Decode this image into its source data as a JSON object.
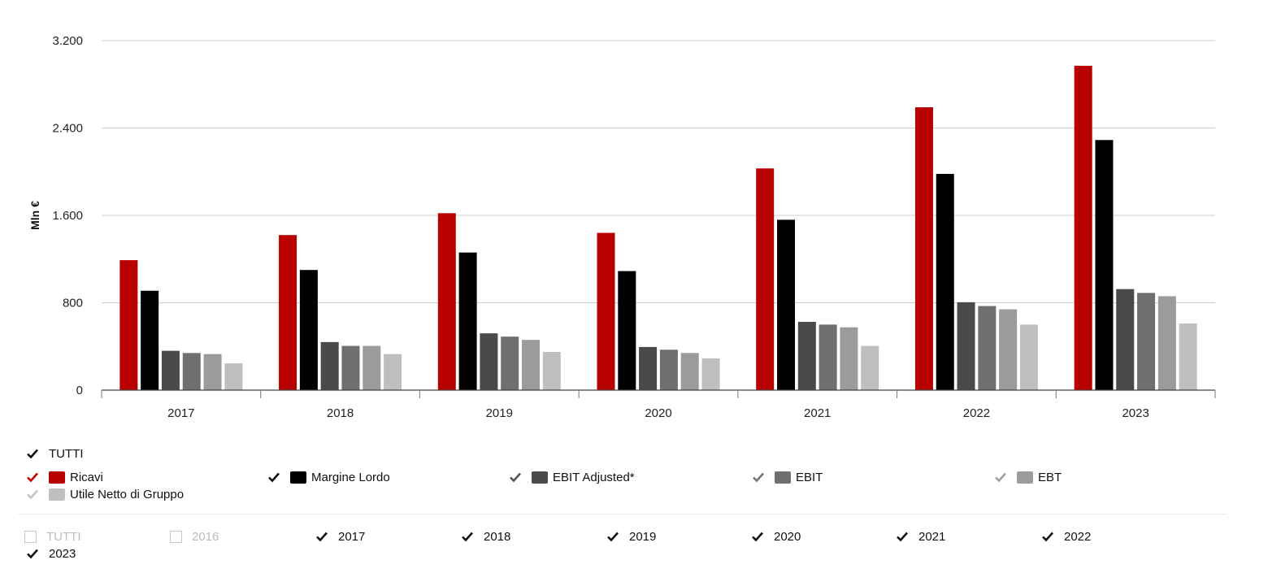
{
  "chart_data": {
    "type": "bar",
    "categories": [
      "2017",
      "2018",
      "2019",
      "2020",
      "2021",
      "2022",
      "2023"
    ],
    "ylabel": "Mln €",
    "ylim": [
      0,
      3200
    ],
    "yticks": [
      0,
      800,
      1600,
      2400,
      3200
    ],
    "ytick_labels": [
      "0",
      "800",
      "1.600",
      "2.400",
      "3.200"
    ],
    "grid": true,
    "series": [
      {
        "name": "Ricavi",
        "color": "#b80000",
        "values": [
          1190,
          1420,
          1620,
          1440,
          2030,
          2590,
          2970
        ]
      },
      {
        "name": "Margine Lordo",
        "color": "#000000",
        "values": [
          910,
          1100,
          1260,
          1090,
          1560,
          1980,
          2290
        ]
      },
      {
        "name": "EBIT Adjusted*",
        "color": "#4a4a4a",
        "values": [
          360,
          440,
          520,
          395,
          625,
          805,
          925
        ]
      },
      {
        "name": "EBIT",
        "color": "#6f6f6f",
        "values": [
          340,
          405,
          490,
          370,
          600,
          770,
          890
        ]
      },
      {
        "name": "EBT",
        "color": "#9b9b9b",
        "values": [
          330,
          405,
          460,
          340,
          575,
          740,
          860
        ]
      },
      {
        "name": "Utile Netto di Gruppo",
        "color": "#bfbfbf",
        "values": [
          245,
          330,
          350,
          290,
          405,
          600,
          610
        ]
      }
    ]
  },
  "legend": {
    "all_label": "TUTTI",
    "items": [
      {
        "label": "Ricavi",
        "color": "#b80000",
        "check_color": "#c00000"
      },
      {
        "label": "Margine Lordo",
        "color": "#000000",
        "check_color": "#111111"
      },
      {
        "label": "EBIT Adjusted*",
        "color": "#4a4a4a",
        "check_color": "#555555"
      },
      {
        "label": "EBIT",
        "color": "#6f6f6f",
        "check_color": "#777777"
      },
      {
        "label": "EBT",
        "color": "#9b9b9b",
        "check_color": "#a0a0a0"
      },
      {
        "label": "Utile Netto di Gruppo",
        "color": "#bfbfbf",
        "check_color": "#c4c4c4"
      }
    ]
  },
  "years_filter": {
    "all_label": "TUTTI",
    "items": [
      {
        "label": "2016",
        "checked": false
      },
      {
        "label": "2017",
        "checked": true
      },
      {
        "label": "2018",
        "checked": true
      },
      {
        "label": "2019",
        "checked": true
      },
      {
        "label": "2020",
        "checked": true
      },
      {
        "label": "2021",
        "checked": true
      },
      {
        "label": "2022",
        "checked": true
      },
      {
        "label": "2023",
        "checked": true
      }
    ]
  }
}
